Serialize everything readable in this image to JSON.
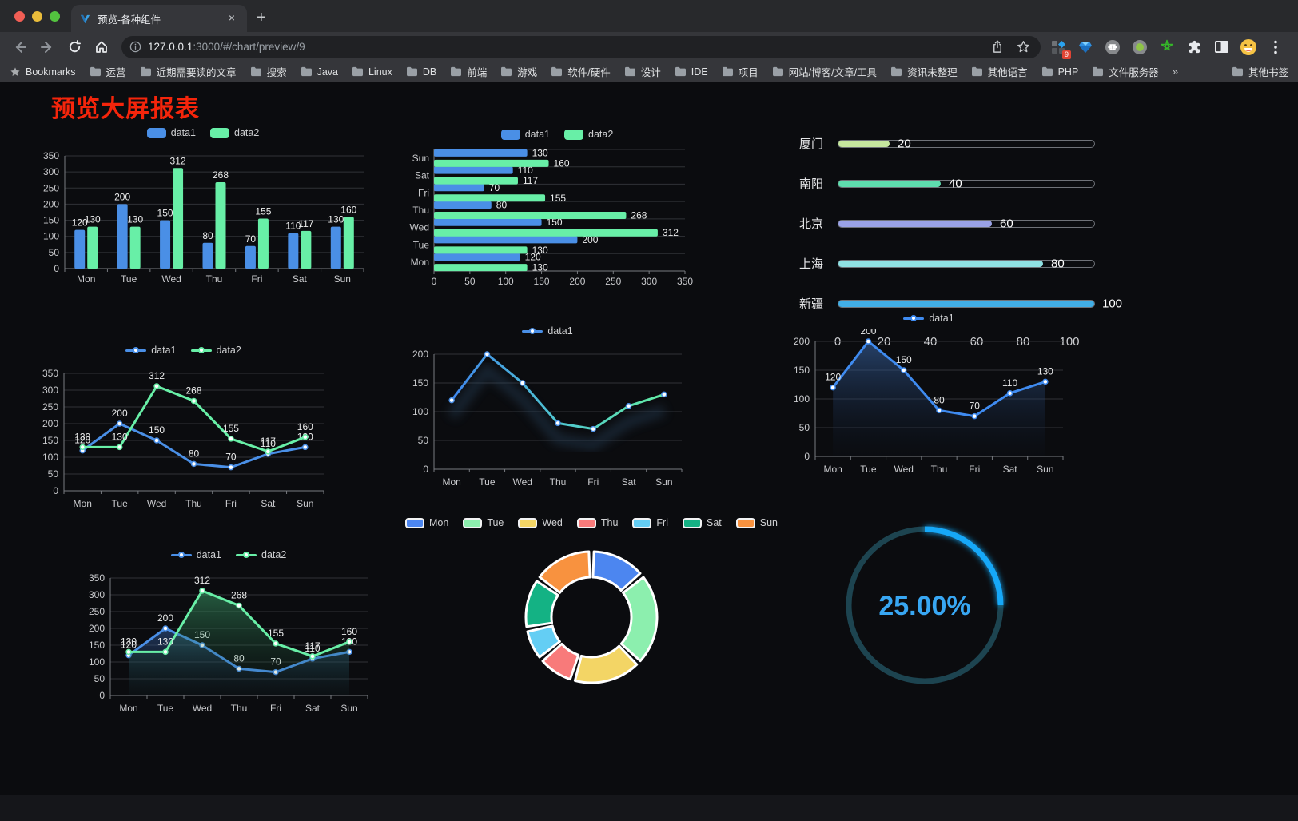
{
  "browser": {
    "tab": {
      "title": "预览-各种组件",
      "close": "×",
      "new_tab": "+"
    },
    "address": {
      "host": "127.0.0.1",
      "rest": ":3000/#/chart/preview/9"
    },
    "extension_badge": "9",
    "bookmarks_bar": {
      "label": "Bookmarks",
      "folders": [
        "运营",
        "近期需要读的文章",
        "搜索",
        "Java",
        "Linux",
        "DB",
        "前端",
        "游戏",
        "软件/硬件",
        "设计",
        "IDE",
        "项目",
        "网站/博客/文章/工具",
        "资讯未整理",
        "其他语言",
        "PHP",
        "文件服务器"
      ],
      "overflow": "»",
      "other": "其他书签"
    }
  },
  "page": {
    "title": "预览大屏报表"
  },
  "chart_data": [
    {
      "type": "bar",
      "categories": [
        "Mon",
        "Tue",
        "Wed",
        "Thu",
        "Fri",
        "Sat",
        "Sun"
      ],
      "series": [
        {
          "name": "data1",
          "color": "#4a8fe6",
          "values": [
            120,
            200,
            150,
            80,
            70,
            110,
            130
          ]
        },
        {
          "name": "data2",
          "color": "#68efa7",
          "values": [
            130,
            130,
            312,
            268,
            155,
            117,
            160
          ]
        }
      ],
      "ylim": [
        0,
        350
      ],
      "ytick": 50,
      "grid": true,
      "legend_position": "top"
    },
    {
      "type": "hbar",
      "categories": [
        "Mon",
        "Tue",
        "Wed",
        "Thu",
        "Fri",
        "Sat",
        "Sun"
      ],
      "series": [
        {
          "name": "data1",
          "color": "#4a8fe6",
          "values": [
            120,
            200,
            150,
            80,
            70,
            110,
            130
          ]
        },
        {
          "name": "data2",
          "color": "#68efa7",
          "values": [
            130,
            130,
            312,
            268,
            155,
            117,
            160
          ]
        }
      ],
      "xlim": [
        0,
        350
      ],
      "xtick": 50,
      "grid": true,
      "legend_position": "top"
    },
    {
      "type": "progress",
      "categories": [
        "厦门",
        "南阳",
        "北京",
        "上海",
        "新疆"
      ],
      "values": [
        20,
        40,
        60,
        80,
        100
      ],
      "colors": [
        "#c6e79e",
        "#5eddae",
        "#9aa2e6",
        "#8fe1e3",
        "#41aee6"
      ],
      "xticks": [
        0,
        20,
        40,
        60,
        80,
        100
      ],
      "xlim": [
        0,
        100
      ]
    },
    {
      "type": "line",
      "categories": [
        "Mon",
        "Tue",
        "Wed",
        "Thu",
        "Fri",
        "Sat",
        "Sun"
      ],
      "series": [
        {
          "name": "data1",
          "color": "#4a8fe6",
          "values": [
            120,
            200,
            150,
            80,
            70,
            110,
            130
          ]
        },
        {
          "name": "data2",
          "color": "#68efa7",
          "values": [
            130,
            130,
            312,
            268,
            155,
            117,
            160
          ]
        }
      ],
      "ylim": [
        0,
        350
      ],
      "ytick": 50,
      "showLabels": true,
      "legend_position": "top"
    },
    {
      "type": "line",
      "categories": [
        "Mon",
        "Tue",
        "Wed",
        "Thu",
        "Fri",
        "Sat",
        "Sun"
      ],
      "series": [
        {
          "name": "data1",
          "color": "#4a8fe6",
          "values": [
            120,
            200,
            150,
            80,
            70,
            110,
            130
          ],
          "lineGradient": [
            "#3f86ec",
            "#4fc6d0",
            "#63eda4"
          ]
        }
      ],
      "ylim": [
        0,
        200
      ],
      "ytick": 50,
      "showLabels": false,
      "glow": true,
      "legend_position": "top"
    },
    {
      "type": "line",
      "categories": [
        "Mon",
        "Tue",
        "Wed",
        "Thu",
        "Fri",
        "Sat",
        "Sun"
      ],
      "series": [
        {
          "name": "data1",
          "color": "#3f8bf0",
          "values": [
            120,
            200,
            150,
            80,
            70,
            110,
            130
          ],
          "area": [
            "rgba(62,110,180,0.55)",
            "rgba(15,30,55,0.05)"
          ]
        }
      ],
      "ylim": [
        0,
        200
      ],
      "ytick": 50,
      "showLabels": true,
      "legend_position": "top"
    },
    {
      "type": "line",
      "categories": [
        "Mon",
        "Tue",
        "Wed",
        "Thu",
        "Fri",
        "Sat",
        "Sun"
      ],
      "series": [
        {
          "name": "data1",
          "color": "#4a8fe6",
          "values": [
            120,
            200,
            150,
            80,
            70,
            110,
            130
          ],
          "area": [
            "rgba(60,110,190,0.45)",
            "rgba(20,40,70,0.05)"
          ]
        },
        {
          "name": "data2",
          "color": "#68efa7",
          "values": [
            130,
            130,
            312,
            268,
            155,
            117,
            160
          ],
          "area": [
            "rgba(70,190,125,0.45)",
            "rgba(20,60,40,0.05)"
          ]
        }
      ],
      "ylim": [
        0,
        350
      ],
      "ytick": 50,
      "showLabels": true,
      "legend_position": "top"
    },
    {
      "type": "donut",
      "labels": [
        "Mon",
        "Tue",
        "Wed",
        "Thu",
        "Fri",
        "Sat",
        "Sun"
      ],
      "values": [
        120,
        200,
        150,
        80,
        70,
        110,
        130
      ],
      "colors": [
        "#4c86f0",
        "#8cefae",
        "#f3d565",
        "#f87a7a",
        "#64cef4",
        "#14b284",
        "#f8923f"
      ],
      "legend_position": "top"
    },
    {
      "type": "gauge",
      "percent": 25,
      "label": "25.00%",
      "color": "#16a8f8",
      "track_color": "#1d4450",
      "text_color": "#38a7f3"
    }
  ]
}
